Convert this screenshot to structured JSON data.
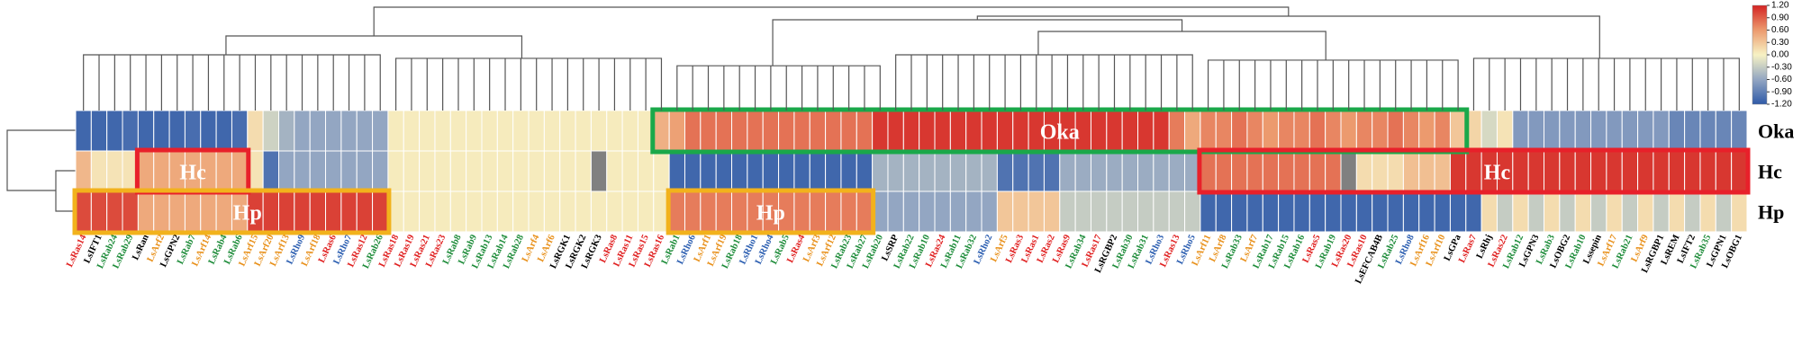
{
  "chart_data": {
    "type": "heatmap",
    "categories": [
      "LsRas14",
      "LsIFT1",
      "LsRab24",
      "LsRab29",
      "LsRan",
      "LsArf2",
      "LsGPN2",
      "LsRab7",
      "LsArf14",
      "LsRab4",
      "LsRab6",
      "LsArf15",
      "LsArf20",
      "LsArf13",
      "LsRho9",
      "LsArf18",
      "LsRas6",
      "LsRho7",
      "LsRas12",
      "LsRab26",
      "LsRas18",
      "LsRas19",
      "LsRas21",
      "LsRas23",
      "LsRab8",
      "LsRab9",
      "LsRab13",
      "LsRab14",
      "LsRab28",
      "LsArf4",
      "LsArf6",
      "LsRGK1",
      "LsRGK2",
      "LsRGK3",
      "LsRas8",
      "LsRas11",
      "LsRas15",
      "LsRas16",
      "LsRab1",
      "LsRho6",
      "LsArf1",
      "LsArf19",
      "LsRab18",
      "LsRho1",
      "LsRho4",
      "LsRab5",
      "LsRas4",
      "LsArf3",
      "LsArf12",
      "LsRab23",
      "LsRab27",
      "LsRab20",
      "LsSRP",
      "LsRab22",
      "LsRab10",
      "LsRas24",
      "LsRab11",
      "LsRab32",
      "LsRho2",
      "LsArf5",
      "LsRas3",
      "LsRas1",
      "LsRas2",
      "LsRas9",
      "LsRab34",
      "LsRas17",
      "LsRGBP2",
      "LsRab30",
      "LsRab31",
      "LsRho3",
      "LsRas13",
      "LsRho5",
      "LsArf11",
      "LsArf8",
      "LsRab33",
      "LsArf7",
      "LsRab17",
      "LsRab15",
      "LsRab16",
      "LsRas5",
      "LsRab19",
      "LsRas20",
      "LsRas10",
      "LsEFCAB4B",
      "LsRab25",
      "LsRho8",
      "LsArf16",
      "LsArf10",
      "LsGPa",
      "LsRas7",
      "LsRhj",
      "LsRas22",
      "LsRab12",
      "LsGPN3",
      "LsRab3",
      "LsOBG2",
      "LsRab10",
      "Lssepin",
      "LsArf17",
      "LsRab21",
      "LsArf9",
      "LsRGBP1",
      "LsREM",
      "LsIFT2",
      "LsRab35",
      "LsGPN1",
      "LsOBG1"
    ],
    "category_colors": [
      "#e02020",
      "#000000",
      "#1e8c3a",
      "#1e8c3a",
      "#000000",
      "#e8901a",
      "#000000",
      "#1e8c3a",
      "#e8901a",
      "#1e8c3a",
      "#1e8c3a",
      "#e8901a",
      "#e8901a",
      "#e8901a",
      "#2a5db0",
      "#e8901a",
      "#e02020",
      "#2a5db0",
      "#e02020",
      "#1e8c3a",
      "#e02020",
      "#e02020",
      "#e02020",
      "#e02020",
      "#1e8c3a",
      "#1e8c3a",
      "#1e8c3a",
      "#1e8c3a",
      "#1e8c3a",
      "#e8901a",
      "#e8901a",
      "#000000",
      "#000000",
      "#000000",
      "#e02020",
      "#e02020",
      "#e02020",
      "#e02020",
      "#1e8c3a",
      "#2a5db0",
      "#e8901a",
      "#e8901a",
      "#1e8c3a",
      "#2a5db0",
      "#2a5db0",
      "#1e8c3a",
      "#e02020",
      "#e8901a",
      "#e8901a",
      "#1e8c3a",
      "#1e8c3a",
      "#1e8c3a",
      "#000000",
      "#1e8c3a",
      "#1e8c3a",
      "#e02020",
      "#1e8c3a",
      "#1e8c3a",
      "#2a5db0",
      "#e8901a",
      "#e02020",
      "#e02020",
      "#e02020",
      "#e02020",
      "#1e8c3a",
      "#e02020",
      "#000000",
      "#1e8c3a",
      "#1e8c3a",
      "#2a5db0",
      "#e02020",
      "#2a5db0",
      "#e8901a",
      "#e8901a",
      "#1e8c3a",
      "#e8901a",
      "#1e8c3a",
      "#1e8c3a",
      "#1e8c3a",
      "#e02020",
      "#1e8c3a",
      "#e02020",
      "#e02020",
      "#000000",
      "#1e8c3a",
      "#2a5db0",
      "#e8901a",
      "#e8901a",
      "#000000",
      "#e02020",
      "#000000",
      "#e02020",
      "#1e8c3a",
      "#000000",
      "#1e8c3a",
      "#000000",
      "#1e8c3a",
      "#000000",
      "#e8901a",
      "#1e8c3a",
      "#e8901a",
      "#000000",
      "#000000",
      "#000000",
      "#1e8c3a",
      "#000000",
      "#000000"
    ],
    "series": [
      {
        "name": "Oka",
        "values": [
          -1.1,
          -1.1,
          -1.1,
          -1.05,
          -1.1,
          -1.1,
          -1.1,
          -1.05,
          -1.1,
          -1.1,
          -1.05,
          0.15,
          -0.25,
          -0.5,
          -0.6,
          -0.6,
          -0.6,
          -0.6,
          -0.6,
          -0.6,
          0.05,
          0.05,
          0.05,
          0.05,
          0.05,
          0.05,
          0.05,
          0.05,
          0.05,
          0.05,
          0.05,
          0.05,
          0.05,
          0.05,
          0.05,
          0.05,
          0.05,
          0.45,
          0.55,
          0.8,
          0.8,
          0.8,
          0.8,
          0.8,
          0.8,
          0.8,
          0.8,
          0.8,
          0.8,
          0.8,
          0.8,
          1.1,
          1.1,
          1.1,
          1.1,
          1.1,
          1.1,
          1.1,
          1.1,
          1.1,
          1.1,
          1.1,
          1.1,
          1.1,
          1.1,
          1.1,
          1.1,
          1.1,
          1.1,
          1.1,
          0.75,
          0.5,
          0.7,
          0.7,
          0.8,
          0.7,
          0.6,
          0.7,
          0.7,
          0.8,
          0.7,
          0.6,
          0.7,
          0.7,
          0.8,
          0.7,
          0.6,
          0.7,
          0.3,
          0.2,
          -0.2,
          0.1,
          -0.7,
          -0.7,
          -0.7,
          -0.7,
          -0.7,
          -0.7,
          -0.7,
          -0.7,
          -0.7,
          -0.7,
          -0.85,
          -0.85,
          -0.85,
          -0.85,
          -0.85
        ]
      },
      {
        "name": "Hc",
        "values": [
          0.4,
          0.1,
          0.1,
          0.1,
          0.5,
          0.5,
          0.5,
          0.5,
          0.5,
          0.5,
          0.5,
          0.1,
          -1.0,
          -0.6,
          -0.6,
          -0.6,
          -0.6,
          -0.6,
          -0.6,
          -0.6,
          0.05,
          0.05,
          0.05,
          0.05,
          0.05,
          0.05,
          0.05,
          0.05,
          0.05,
          0.05,
          0.05,
          0.05,
          0.05,
          null,
          0.05,
          0.05,
          0.05,
          0.05,
          -1.1,
          -1.1,
          -1.1,
          -1.1,
          -1.1,
          -1.1,
          -1.1,
          -1.1,
          -1.1,
          -1.1,
          -1.1,
          -1.1,
          -1.1,
          -0.5,
          -0.5,
          -0.5,
          -0.5,
          -0.5,
          -0.5,
          -0.5,
          -0.5,
          -1.0,
          -1.0,
          -1.0,
          -1.0,
          -0.55,
          -0.55,
          -0.55,
          -0.55,
          -0.55,
          -0.55,
          -0.55,
          -0.55,
          -0.55,
          0.8,
          0.8,
          0.8,
          0.8,
          0.8,
          0.8,
          0.8,
          0.8,
          0.8,
          null,
          0.15,
          0.15,
          0.15,
          0.35,
          0.35,
          0.35,
          1.1,
          1.1,
          1.1,
          1.1,
          1.1,
          1.1,
          1.1,
          1.1,
          1.1,
          1.1,
          1.1,
          1.1,
          1.1,
          1.1,
          1.1,
          1.1,
          1.1,
          1.1,
          1.1
        ]
      },
      {
        "name": "Hp",
        "values": [
          1.0,
          1.0,
          1.0,
          1.0,
          0.5,
          0.5,
          0.5,
          0.5,
          0.5,
          0.5,
          0.5,
          1.05,
          1.05,
          1.05,
          1.05,
          1.05,
          1.05,
          1.05,
          1.05,
          1.05,
          0.05,
          0.05,
          0.05,
          0.05,
          0.05,
          0.05,
          0.05,
          0.05,
          0.05,
          0.05,
          0.05,
          0.05,
          0.05,
          0.05,
          0.05,
          0.05,
          0.05,
          0.05,
          0.75,
          0.75,
          0.75,
          0.75,
          0.75,
          0.75,
          0.75,
          0.75,
          0.75,
          0.75,
          0.75,
          0.75,
          0.75,
          -0.6,
          -0.6,
          -0.6,
          -0.6,
          -0.6,
          -0.6,
          -0.6,
          -0.6,
          0.3,
          0.3,
          0.3,
          0.3,
          -0.3,
          -0.3,
          -0.3,
          -0.3,
          -0.3,
          -0.3,
          -0.3,
          -0.3,
          -0.3,
          -1.1,
          -1.1,
          -1.1,
          -1.1,
          -1.1,
          -1.1,
          -1.1,
          -1.1,
          -1.1,
          -1.1,
          -1.1,
          -1.1,
          -1.1,
          -1.1,
          -1.1,
          -1.1,
          -1.1,
          -1.1,
          0.15,
          -0.3,
          0.15,
          -0.3,
          0.15,
          -0.3,
          0.15,
          -0.3,
          0.15,
          -0.3,
          0.15,
          -0.3,
          0.15,
          -0.3,
          0.15,
          -0.3,
          0.15
        ]
      }
    ],
    "missing_color": "#808080",
    "colormap": [
      "#2f5aa8",
      "#93a6c2",
      "#f7f2c4",
      "#ec9a6e",
      "#d42323"
    ],
    "zlim": [
      -1.2,
      1.2
    ],
    "zticks": [
      {
        "value": 1.2,
        "label": "1.20"
      },
      {
        "value": 0.9,
        "label": "0.90"
      },
      {
        "value": 0.6,
        "label": "0.60"
      },
      {
        "value": 0.3,
        "label": "0.30"
      },
      {
        "value": 0.0,
        "label": "0.00"
      },
      {
        "value": -0.3,
        "label": "-0.30"
      },
      {
        "value": -0.6,
        "label": "-0.60"
      },
      {
        "value": -0.9,
        "label": "-0.90"
      },
      {
        "value": -1.2,
        "label": "-1.20"
      }
    ],
    "annotations": [
      {
        "text": "Oka",
        "color": "#1aa84a"
      },
      {
        "text": "Hc",
        "color": "#e8202a"
      },
      {
        "text": "Hc",
        "color": "#e8202a"
      },
      {
        "text": "Hp",
        "color": "#f2b21c"
      },
      {
        "text": "Hp",
        "color": "#f2b21c"
      }
    ]
  }
}
